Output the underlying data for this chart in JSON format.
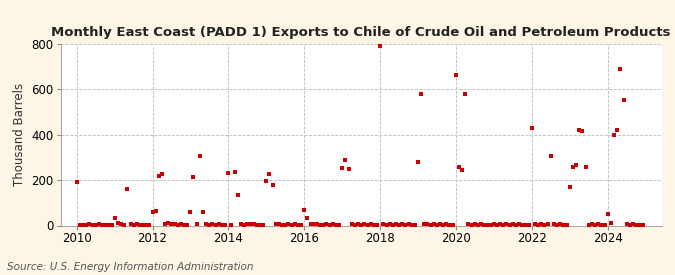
{
  "title": "Monthly East Coast (PADD 1) Exports to Chile of Crude Oil and Petroleum Products",
  "ylabel": "Thousand Barrels",
  "source": "Source: U.S. Energy Information Administration",
  "background_color": "#fdf5e6",
  "plot_background_color": "#ffffff",
  "marker_color": "#cc0000",
  "marker_size": 5,
  "ylim": [
    0,
    800
  ],
  "yticks": [
    0,
    200,
    400,
    600,
    800
  ],
  "xlim": [
    2009.58,
    2025.42
  ],
  "xticks": [
    2010,
    2012,
    2014,
    2016,
    2018,
    2020,
    2022,
    2024
  ],
  "data_points": [
    [
      2010.0,
      193
    ],
    [
      2010.08,
      2
    ],
    [
      2010.17,
      3
    ],
    [
      2010.25,
      2
    ],
    [
      2010.33,
      5
    ],
    [
      2010.42,
      3
    ],
    [
      2010.5,
      2
    ],
    [
      2010.58,
      5
    ],
    [
      2010.67,
      2
    ],
    [
      2010.75,
      3
    ],
    [
      2010.83,
      2
    ],
    [
      2010.92,
      2
    ],
    [
      2011.0,
      35
    ],
    [
      2011.08,
      10
    ],
    [
      2011.17,
      5
    ],
    [
      2011.25,
      3
    ],
    [
      2011.33,
      160
    ],
    [
      2011.42,
      5
    ],
    [
      2011.5,
      3
    ],
    [
      2011.58,
      5
    ],
    [
      2011.67,
      3
    ],
    [
      2011.75,
      2
    ],
    [
      2011.83,
      2
    ],
    [
      2011.92,
      2
    ],
    [
      2012.0,
      60
    ],
    [
      2012.08,
      65
    ],
    [
      2012.17,
      220
    ],
    [
      2012.25,
      225
    ],
    [
      2012.33,
      5
    ],
    [
      2012.42,
      10
    ],
    [
      2012.5,
      8
    ],
    [
      2012.58,
      5
    ],
    [
      2012.67,
      3
    ],
    [
      2012.75,
      5
    ],
    [
      2012.83,
      3
    ],
    [
      2012.92,
      2
    ],
    [
      2013.0,
      60
    ],
    [
      2013.08,
      215
    ],
    [
      2013.17,
      5
    ],
    [
      2013.25,
      305
    ],
    [
      2013.33,
      60
    ],
    [
      2013.42,
      5
    ],
    [
      2013.5,
      3
    ],
    [
      2013.58,
      5
    ],
    [
      2013.67,
      3
    ],
    [
      2013.75,
      8
    ],
    [
      2013.83,
      3
    ],
    [
      2013.92,
      2
    ],
    [
      2014.0,
      232
    ],
    [
      2014.08,
      3
    ],
    [
      2014.17,
      235
    ],
    [
      2014.25,
      135
    ],
    [
      2014.33,
      5
    ],
    [
      2014.42,
      3
    ],
    [
      2014.5,
      5
    ],
    [
      2014.58,
      5
    ],
    [
      2014.67,
      8
    ],
    [
      2014.75,
      3
    ],
    [
      2014.83,
      3
    ],
    [
      2014.92,
      2
    ],
    [
      2015.0,
      195
    ],
    [
      2015.08,
      225
    ],
    [
      2015.17,
      180
    ],
    [
      2015.25,
      5
    ],
    [
      2015.33,
      5
    ],
    [
      2015.42,
      3
    ],
    [
      2015.5,
      3
    ],
    [
      2015.58,
      5
    ],
    [
      2015.67,
      3
    ],
    [
      2015.75,
      5
    ],
    [
      2015.83,
      3
    ],
    [
      2015.92,
      2
    ],
    [
      2016.0,
      70
    ],
    [
      2016.08,
      35
    ],
    [
      2016.17,
      5
    ],
    [
      2016.25,
      5
    ],
    [
      2016.33,
      5
    ],
    [
      2016.42,
      3
    ],
    [
      2016.5,
      3
    ],
    [
      2016.58,
      5
    ],
    [
      2016.67,
      3
    ],
    [
      2016.75,
      5
    ],
    [
      2016.83,
      3
    ],
    [
      2016.92,
      2
    ],
    [
      2017.0,
      255
    ],
    [
      2017.08,
      290
    ],
    [
      2017.17,
      250
    ],
    [
      2017.25,
      5
    ],
    [
      2017.33,
      3
    ],
    [
      2017.42,
      5
    ],
    [
      2017.5,
      3
    ],
    [
      2017.58,
      5
    ],
    [
      2017.67,
      3
    ],
    [
      2017.75,
      5
    ],
    [
      2017.83,
      3
    ],
    [
      2017.92,
      2
    ],
    [
      2018.0,
      790
    ],
    [
      2018.08,
      5
    ],
    [
      2018.17,
      3
    ],
    [
      2018.25,
      5
    ],
    [
      2018.33,
      3
    ],
    [
      2018.42,
      5
    ],
    [
      2018.5,
      3
    ],
    [
      2018.58,
      5
    ],
    [
      2018.67,
      3
    ],
    [
      2018.75,
      5
    ],
    [
      2018.83,
      3
    ],
    [
      2018.92,
      2
    ],
    [
      2019.0,
      280
    ],
    [
      2019.08,
      580
    ],
    [
      2019.17,
      5
    ],
    [
      2019.25,
      5
    ],
    [
      2019.33,
      3
    ],
    [
      2019.42,
      5
    ],
    [
      2019.5,
      3
    ],
    [
      2019.58,
      5
    ],
    [
      2019.67,
      3
    ],
    [
      2019.75,
      5
    ],
    [
      2019.83,
      3
    ],
    [
      2019.92,
      2
    ],
    [
      2020.0,
      665
    ],
    [
      2020.08,
      260
    ],
    [
      2020.17,
      245
    ],
    [
      2020.25,
      578
    ],
    [
      2020.33,
      5
    ],
    [
      2020.42,
      3
    ],
    [
      2020.5,
      5
    ],
    [
      2020.58,
      3
    ],
    [
      2020.67,
      5
    ],
    [
      2020.75,
      3
    ],
    [
      2020.83,
      3
    ],
    [
      2020.92,
      2
    ],
    [
      2021.0,
      5
    ],
    [
      2021.08,
      3
    ],
    [
      2021.17,
      5
    ],
    [
      2021.25,
      3
    ],
    [
      2021.33,
      5
    ],
    [
      2021.42,
      3
    ],
    [
      2021.5,
      5
    ],
    [
      2021.58,
      3
    ],
    [
      2021.67,
      5
    ],
    [
      2021.75,
      3
    ],
    [
      2021.83,
      3
    ],
    [
      2021.92,
      2
    ],
    [
      2022.0,
      428
    ],
    [
      2022.08,
      5
    ],
    [
      2022.17,
      3
    ],
    [
      2022.25,
      5
    ],
    [
      2022.33,
      3
    ],
    [
      2022.42,
      5
    ],
    [
      2022.5,
      305
    ],
    [
      2022.58,
      5
    ],
    [
      2022.67,
      3
    ],
    [
      2022.75,
      5
    ],
    [
      2022.83,
      3
    ],
    [
      2022.92,
      2
    ],
    [
      2023.0,
      170
    ],
    [
      2023.08,
      258
    ],
    [
      2023.17,
      265
    ],
    [
      2023.25,
      420
    ],
    [
      2023.33,
      415
    ],
    [
      2023.42,
      260
    ],
    [
      2023.5,
      3
    ],
    [
      2023.58,
      5
    ],
    [
      2023.67,
      3
    ],
    [
      2023.75,
      5
    ],
    [
      2023.83,
      3
    ],
    [
      2023.92,
      2
    ],
    [
      2024.0,
      50
    ],
    [
      2024.08,
      10
    ],
    [
      2024.17,
      400
    ],
    [
      2024.25,
      420
    ],
    [
      2024.33,
      690
    ],
    [
      2024.42,
      555
    ],
    [
      2024.5,
      5
    ],
    [
      2024.58,
      3
    ],
    [
      2024.67,
      5
    ],
    [
      2024.75,
      3
    ],
    [
      2024.83,
      3
    ],
    [
      2024.92,
      2
    ]
  ],
  "vgrid_years": [
    2010,
    2012,
    2014,
    2016,
    2018,
    2020,
    2022,
    2024
  ],
  "title_fontsize": 9.5,
  "axis_fontsize": 8.5,
  "source_fontsize": 7.5
}
